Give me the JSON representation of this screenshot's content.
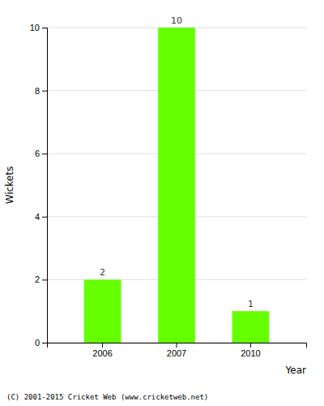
{
  "chart_data": {
    "type": "bar",
    "categories": [
      "2006",
      "2007",
      "2010"
    ],
    "values": [
      2,
      10,
      1
    ],
    "color": "#66ff00",
    "xlabel": "Year",
    "ylabel": "Wickets",
    "ylim": [
      0,
      10
    ],
    "yticks": [
      0,
      2,
      4,
      6,
      8,
      10
    ],
    "grid": true,
    "data_labels": true,
    "footer": "(C) 2001-2015 Cricket Web (www.cricketweb.net)"
  }
}
